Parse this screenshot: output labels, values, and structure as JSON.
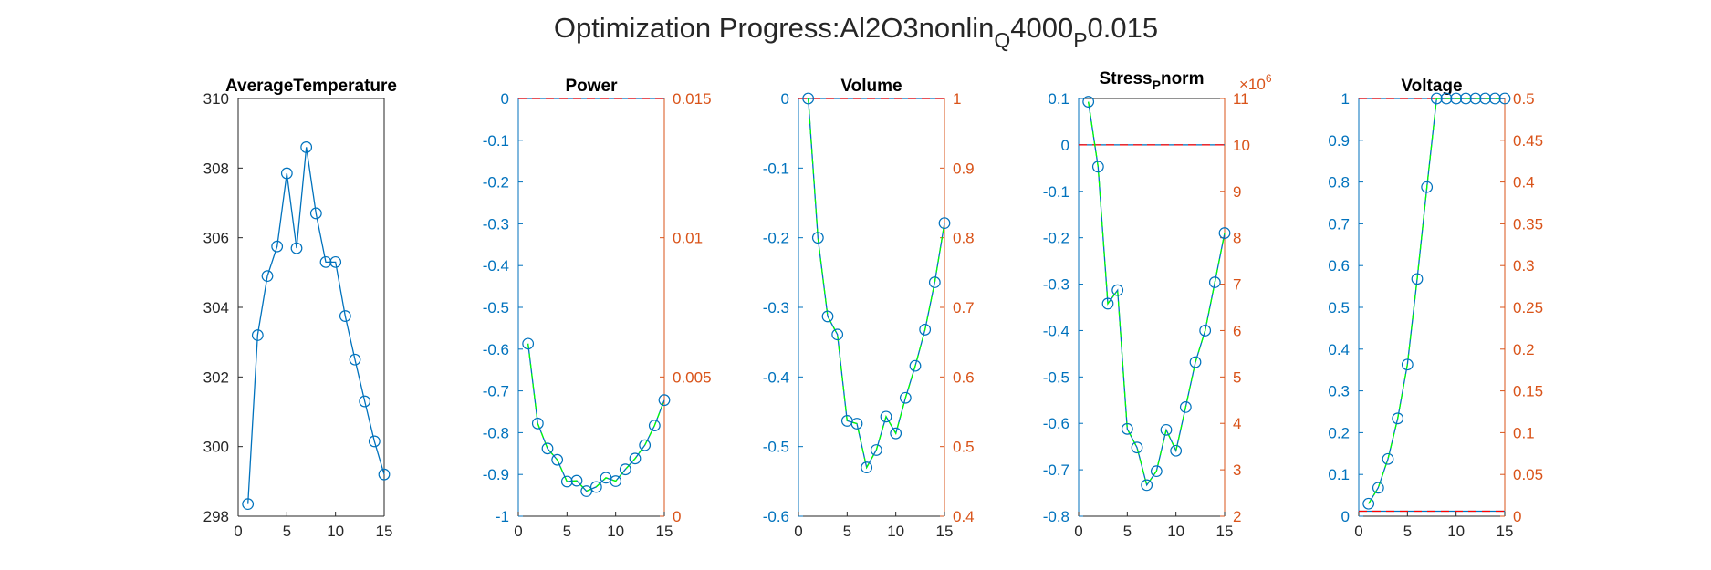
{
  "figure_title": {
    "prefix": "Optimization Progress:Al2O3nonlin",
    "sub1": "Q",
    "mid": "4000",
    "sub2": "P",
    "suffix": "0.015"
  },
  "colors": {
    "axis_left": "#0072BD",
    "axis_right": "#D95319",
    "axis_black": "#262626",
    "series_main": "#0072BD",
    "series_overlay": "#00FF00",
    "reference": "#FF0000"
  },
  "chart_data": [
    {
      "type": "line",
      "title": "AverageTemperature",
      "xlim": [
        0,
        15
      ],
      "xticks": [
        "0",
        "5",
        "10",
        "15"
      ],
      "ylim": [
        298,
        310
      ],
      "yticks": [
        "298",
        "300",
        "302",
        "304",
        "306",
        "308",
        "310"
      ],
      "right_axis": null,
      "series": [
        {
          "x": [
            1,
            2,
            3,
            4,
            5,
            6,
            7,
            8,
            9,
            10,
            11,
            12,
            13,
            14,
            15
          ],
          "values": [
            298.35,
            303.2,
            304.9,
            305.75,
            307.85,
            305.7,
            308.6,
            306.7,
            305.3,
            305.3,
            303.75,
            302.5,
            301.3,
            300.15,
            299.2
          ]
        }
      ]
    },
    {
      "type": "line",
      "title": "Power",
      "xlim": [
        0,
        15
      ],
      "xticks": [
        "0",
        "5",
        "10",
        "15"
      ],
      "ylim": [
        -1,
        0
      ],
      "yticks": [
        "-1",
        "-0.9",
        "-0.8",
        "-0.7",
        "-0.6",
        "-0.5",
        "-0.4",
        "-0.3",
        "-0.2",
        "-0.1",
        "0"
      ],
      "right_axis": {
        "ylim": [
          0,
          0.015
        ],
        "yticks": [
          "0",
          "0.005",
          "0.01",
          "0.015"
        ]
      },
      "reference_line": {
        "y": 0,
        "axis": "left"
      },
      "series": [
        {
          "x": [
            1,
            2,
            3,
            4,
            5,
            6,
            7,
            8,
            9,
            10,
            11,
            12,
            13,
            14,
            15
          ],
          "values": [
            -0.587,
            -0.778,
            -0.838,
            -0.865,
            -0.917,
            -0.915,
            -0.94,
            -0.93,
            -0.908,
            -0.916,
            -0.888,
            -0.862,
            -0.83,
            -0.783,
            -0.722
          ]
        }
      ]
    },
    {
      "type": "line",
      "title": "Volume",
      "xlim": [
        0,
        15
      ],
      "xticks": [
        "0",
        "5",
        "10",
        "15"
      ],
      "ylim": [
        -0.6,
        0
      ],
      "yticks": [
        "-0.6",
        "-0.5",
        "-0.4",
        "-0.3",
        "-0.2",
        "-0.1",
        "0"
      ],
      "right_axis": {
        "ylim": [
          0.4,
          1
        ],
        "yticks": [
          "0.4",
          "0.5",
          "0.6",
          "0.7",
          "0.8",
          "0.9",
          "1"
        ]
      },
      "reference_line": {
        "y": 0,
        "axis": "left"
      },
      "series": [
        {
          "x": [
            1,
            2,
            3,
            4,
            5,
            6,
            7,
            8,
            9,
            10,
            11,
            12,
            13,
            14,
            15
          ],
          "values": [
            0,
            -0.2,
            -0.313,
            -0.339,
            -0.463,
            -0.467,
            -0.53,
            -0.505,
            -0.457,
            -0.481,
            -0.43,
            -0.384,
            -0.332,
            -0.264,
            -0.179
          ]
        }
      ]
    },
    {
      "type": "line",
      "title_main": "Stress",
      "title_sub": "P",
      "title_tail": "norm",
      "xlim": [
        0,
        15
      ],
      "xticks": [
        "0",
        "5",
        "10",
        "15"
      ],
      "ylim": [
        -0.8,
        0.1
      ],
      "yticks": [
        "-0.8",
        "-0.7",
        "-0.6",
        "-0.5",
        "-0.4",
        "-0.3",
        "-0.2",
        "-0.1",
        "0",
        "0.1"
      ],
      "right_axis": {
        "ylim": [
          2,
          11
        ],
        "yticks": [
          "2",
          "3",
          "4",
          "5",
          "6",
          "7",
          "8",
          "9",
          "10",
          "11"
        ],
        "exponent_base": "×10",
        "exponent_power": "6"
      },
      "reference_line": {
        "y": 0,
        "axis": "left"
      },
      "series": [
        {
          "x": [
            1,
            2,
            3,
            4,
            5,
            6,
            7,
            8,
            9,
            10,
            11,
            12,
            13,
            14,
            15
          ],
          "values": [
            0.093,
            -0.047,
            -0.342,
            -0.313,
            -0.612,
            -0.652,
            -0.733,
            -0.703,
            -0.614,
            -0.659,
            -0.565,
            -0.468,
            -0.4,
            -0.296,
            -0.19
          ]
        }
      ]
    },
    {
      "type": "line",
      "title": "Voltage",
      "xlim": [
        0,
        15
      ],
      "xticks": [
        "0",
        "5",
        "10",
        "15"
      ],
      "ylim": [
        0,
        1
      ],
      "yticks": [
        "0",
        "0.1",
        "0.2",
        "0.3",
        "0.4",
        "0.5",
        "0.6",
        "0.7",
        "0.8",
        "0.9",
        "1"
      ],
      "right_axis": {
        "ylim": [
          0,
          0.5
        ],
        "yticks": [
          "0",
          "0.05",
          "0.1",
          "0.15",
          "0.2",
          "0.25",
          "0.3",
          "0.35",
          "0.4",
          "0.45",
          "0.5"
        ]
      },
      "reference_lines": [
        {
          "y": 1,
          "axis": "left"
        },
        {
          "y": 0.012,
          "axis": "left"
        }
      ],
      "series": [
        {
          "x": [
            1,
            2,
            3,
            4,
            5,
            6,
            7,
            8,
            9,
            10,
            11,
            12,
            13,
            14,
            15
          ],
          "values": [
            0.03,
            0.068,
            0.137,
            0.234,
            0.363,
            0.568,
            0.788,
            1,
            1,
            1,
            1,
            1,
            1,
            1,
            1
          ]
        }
      ]
    }
  ]
}
